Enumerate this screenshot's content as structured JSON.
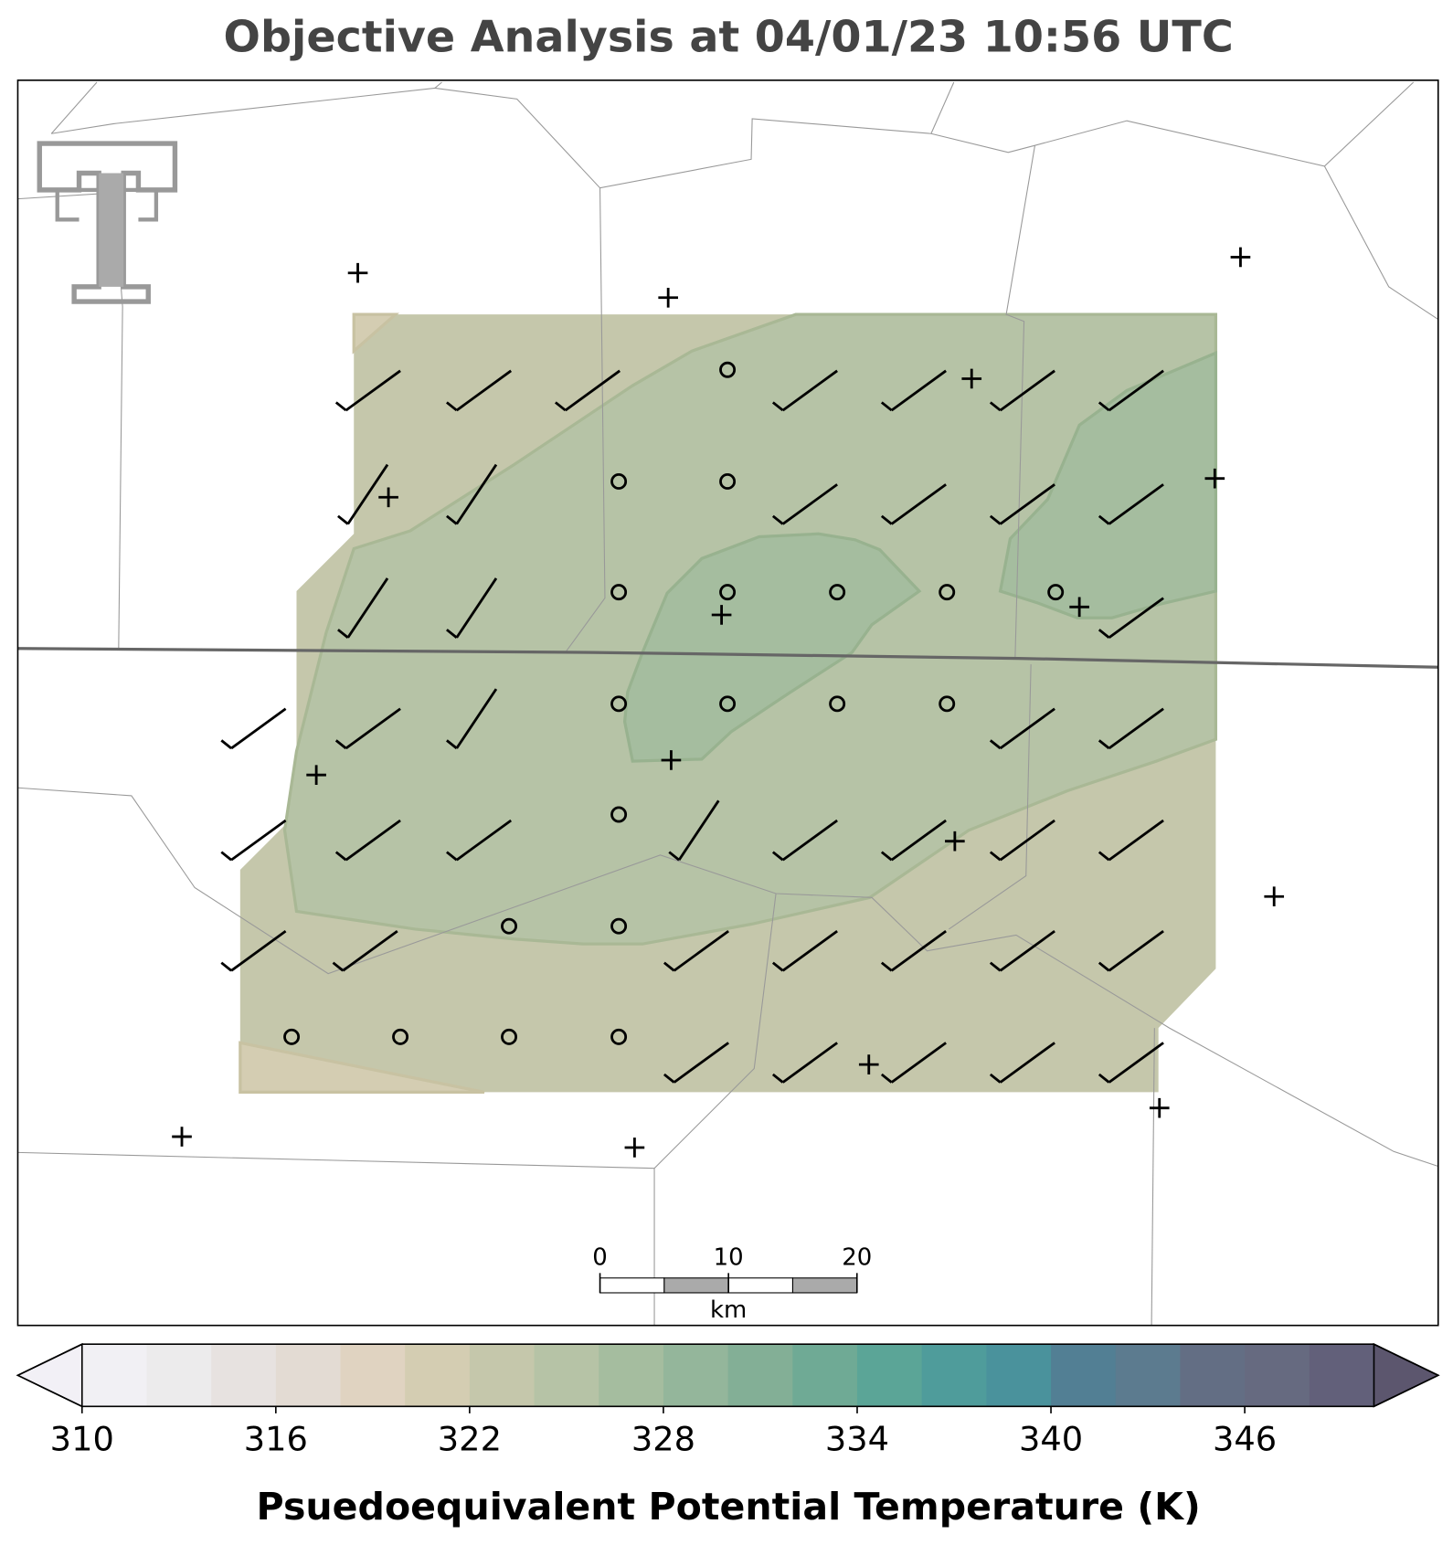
{
  "title": "Objective Analysis at 04/01/23 10:56 UTC",
  "colorbar": {
    "label": "Psuedoequivalent Potential Temperature (K)",
    "levels": [
      310,
      312,
      314,
      316,
      318,
      320,
      322,
      324,
      326,
      328,
      330,
      332,
      334,
      336,
      338,
      340,
      342,
      344,
      346,
      348,
      350
    ],
    "colors": [
      "#f1f0f4",
      "#ecebec",
      "#e7e2e0",
      "#e3dbd3",
      "#e0d3c1",
      "#d4cdb2",
      "#c5c7ab",
      "#b6c3a6",
      "#a5bd9f",
      "#94b69b",
      "#83af96",
      "#6faa95",
      "#5ba597",
      "#4f9c9b",
      "#4a929c",
      "#527f94",
      "#5c7b8f",
      "#636e84",
      "#666a80",
      "#62607a"
    ],
    "extend_colors": [
      "#f2f0f6",
      "#5c566e"
    ],
    "ticks": [
      310,
      316,
      322,
      328,
      334,
      340,
      346
    ]
  },
  "scale_bar": {
    "ticks": [
      0,
      10,
      20
    ],
    "unit": "km"
  }
}
